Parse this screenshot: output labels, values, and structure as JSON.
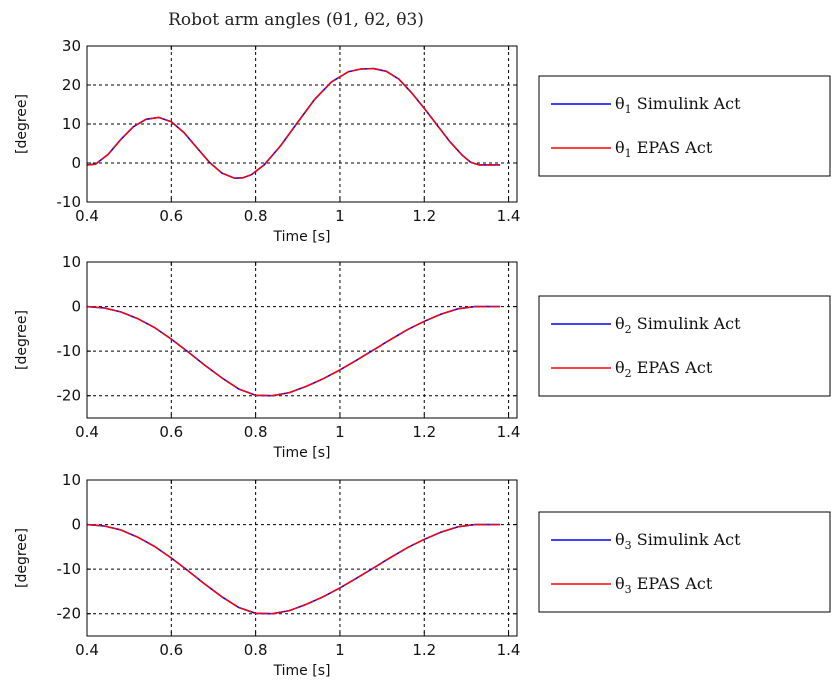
{
  "chart_data": [
    {
      "type": "line",
      "title": "Robot arm angles (θ1, θ2, θ3)",
      "xlabel": "Time [s]",
      "ylabel": "[degree]",
      "xlim": [
        0.4,
        1.42
      ],
      "ylim": [
        -10,
        30
      ],
      "xticks": [
        "0.4",
        "0.6",
        "0.8",
        "1",
        "1.2",
        "1.4"
      ],
      "yticks": [
        "30",
        "20",
        "10",
        "0",
        "-10"
      ],
      "grid": true,
      "legend_position": "right-outside",
      "series": [
        {
          "name": "θ1 Simulink Act",
          "color": "#0000ff",
          "x": [
            0.4,
            0.42,
            0.45,
            0.48,
            0.51,
            0.54,
            0.57,
            0.6,
            0.63,
            0.66,
            0.69,
            0.72,
            0.75,
            0.77,
            0.79,
            0.82,
            0.86,
            0.9,
            0.94,
            0.98,
            1.02,
            1.05,
            1.08,
            1.11,
            1.14,
            1.17,
            1.2,
            1.23,
            1.26,
            1.29,
            1.31,
            1.33,
            1.36,
            1.38
          ],
          "y": [
            -0.5,
            -0.3,
            2.2,
            6.0,
            9.3,
            11.2,
            11.7,
            10.6,
            7.8,
            4.0,
            0.2,
            -2.6,
            -3.9,
            -3.8,
            -3.0,
            -0.5,
            4.5,
            10.5,
            16.3,
            20.8,
            23.4,
            24.1,
            24.2,
            23.5,
            21.5,
            18.0,
            14.0,
            9.8,
            5.6,
            2.0,
            0.2,
            -0.5,
            -0.5,
            -0.5
          ]
        },
        {
          "name": "θ1 EPAS Act",
          "color": "#ff0000",
          "x": [
            0.4,
            0.42,
            0.45,
            0.48,
            0.51,
            0.54,
            0.57,
            0.6,
            0.63,
            0.66,
            0.69,
            0.72,
            0.75,
            0.77,
            0.79,
            0.82,
            0.86,
            0.9,
            0.94,
            0.98,
            1.02,
            1.05,
            1.08,
            1.11,
            1.14,
            1.17,
            1.2,
            1.23,
            1.26,
            1.29,
            1.31,
            1.33,
            1.36,
            1.38
          ],
          "y": [
            -0.5,
            -0.3,
            2.2,
            6.0,
            9.3,
            11.2,
            11.7,
            10.6,
            7.8,
            4.0,
            0.2,
            -2.6,
            -3.9,
            -3.8,
            -3.0,
            -0.5,
            4.5,
            10.5,
            16.3,
            20.8,
            23.4,
            24.1,
            24.2,
            23.5,
            21.5,
            18.0,
            14.0,
            9.8,
            5.6,
            2.0,
            0.2,
            -0.5,
            -0.5,
            -0.5
          ]
        }
      ]
    },
    {
      "type": "line",
      "xlabel": "Time [s]",
      "ylabel": "[degree]",
      "xlim": [
        0.4,
        1.42
      ],
      "ylim": [
        -25,
        10
      ],
      "xticks": [
        "0.4",
        "0.6",
        "0.8",
        "1",
        "1.2",
        "1.4"
      ],
      "yticks": [
        "10",
        "0",
        "-10",
        "-20"
      ],
      "grid": true,
      "legend_position": "right-outside",
      "series": [
        {
          "name": "θ2 Simulink Act",
          "color": "#0000ff",
          "x": [
            0.4,
            0.44,
            0.48,
            0.52,
            0.56,
            0.6,
            0.64,
            0.68,
            0.72,
            0.76,
            0.8,
            0.84,
            0.88,
            0.92,
            0.96,
            1.0,
            1.04,
            1.08,
            1.12,
            1.16,
            1.2,
            1.24,
            1.28,
            1.32,
            1.35,
            1.38
          ],
          "y": [
            0,
            -0.3,
            -1.2,
            -2.7,
            -4.7,
            -7.3,
            -10.2,
            -13.2,
            -16.0,
            -18.5,
            -19.9,
            -20.0,
            -19.3,
            -17.9,
            -16.2,
            -14.2,
            -12.0,
            -9.7,
            -7.4,
            -5.2,
            -3.3,
            -1.7,
            -0.5,
            0,
            0,
            0
          ]
        },
        {
          "name": "θ2 EPAS Act",
          "color": "#ff0000",
          "x": [
            0.4,
            0.44,
            0.48,
            0.52,
            0.56,
            0.6,
            0.64,
            0.68,
            0.72,
            0.76,
            0.8,
            0.84,
            0.88,
            0.92,
            0.96,
            1.0,
            1.04,
            1.08,
            1.12,
            1.16,
            1.2,
            1.24,
            1.28,
            1.32,
            1.35,
            1.38
          ],
          "y": [
            0,
            -0.3,
            -1.2,
            -2.7,
            -4.7,
            -7.3,
            -10.2,
            -13.2,
            -16.0,
            -18.5,
            -19.9,
            -20.0,
            -19.3,
            -17.9,
            -16.2,
            -14.2,
            -12.0,
            -9.7,
            -7.4,
            -5.2,
            -3.3,
            -1.7,
            -0.5,
            0,
            0,
            0
          ]
        }
      ]
    },
    {
      "type": "line",
      "xlabel": "Time [s]",
      "ylabel": "[degree]",
      "xlim": [
        0.4,
        1.42
      ],
      "ylim": [
        -25,
        10
      ],
      "xticks": [
        "0.4",
        "0.6",
        "0.8",
        "1",
        "1.2",
        "1.4"
      ],
      "yticks": [
        "10",
        "0",
        "-10",
        "-20"
      ],
      "grid": true,
      "legend_position": "right-outside",
      "series": [
        {
          "name": "θ3 Simulink Act",
          "color": "#0000ff",
          "x": [
            0.4,
            0.44,
            0.48,
            0.52,
            0.56,
            0.6,
            0.64,
            0.68,
            0.72,
            0.76,
            0.8,
            0.84,
            0.88,
            0.92,
            0.96,
            1.0,
            1.04,
            1.08,
            1.12,
            1.16,
            1.2,
            1.24,
            1.28,
            1.32,
            1.35,
            1.38
          ],
          "y": [
            0,
            -0.3,
            -1.2,
            -2.8,
            -4.9,
            -7.5,
            -10.4,
            -13.4,
            -16.2,
            -18.6,
            -19.9,
            -20.0,
            -19.3,
            -17.9,
            -16.2,
            -14.2,
            -12.0,
            -9.7,
            -7.4,
            -5.2,
            -3.3,
            -1.7,
            -0.5,
            0,
            0,
            0
          ]
        },
        {
          "name": "θ3 EPAS Act",
          "color": "#ff0000",
          "x": [
            0.4,
            0.44,
            0.48,
            0.52,
            0.56,
            0.6,
            0.64,
            0.68,
            0.72,
            0.76,
            0.8,
            0.84,
            0.88,
            0.92,
            0.96,
            1.0,
            1.04,
            1.08,
            1.12,
            1.16,
            1.2,
            1.24,
            1.28,
            1.32,
            1.35,
            1.38
          ],
          "y": [
            0,
            -0.3,
            -1.2,
            -2.8,
            -4.9,
            -7.5,
            -10.4,
            -13.4,
            -16.2,
            -18.6,
            -19.9,
            -20.0,
            -19.3,
            -17.9,
            -16.2,
            -14.2,
            -12.0,
            -9.7,
            -7.4,
            -5.2,
            -3.3,
            -1.7,
            -0.5,
            0,
            0,
            0
          ]
        }
      ]
    }
  ]
}
